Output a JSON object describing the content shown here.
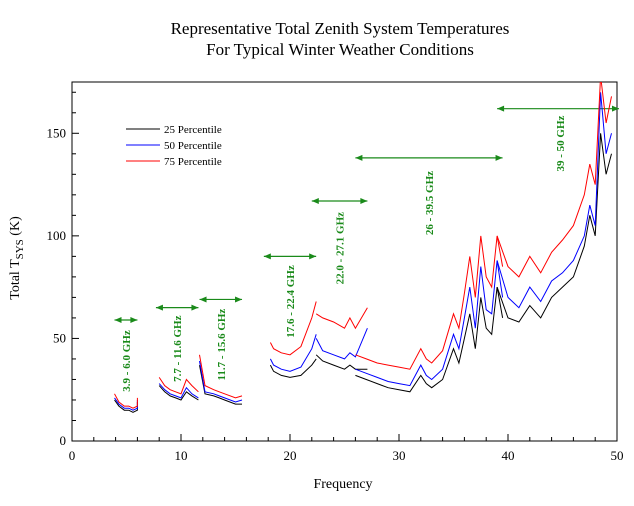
{
  "chart_data": {
    "type": "line",
    "title_lines": [
      "Representative Total Zenith System Temperatures",
      "For Typical Winter Weather Conditions"
    ],
    "xlabel": "Frequency",
    "ylabel_main": "Total T",
    "ylabel_sub": "SYS",
    "ylabel_unit": " (K)",
    "xlim": [
      0,
      50
    ],
    "ylim": [
      0,
      175
    ],
    "xticks": [
      0,
      10,
      20,
      30,
      40,
      50
    ],
    "yticks": [
      0,
      50,
      100,
      150
    ],
    "legend_position": "upper-left",
    "series": [
      {
        "name": "25 Percentile",
        "color": "#000000",
        "segments": [
          [
            [
              3.9,
              20
            ],
            [
              4.3,
              17
            ],
            [
              4.8,
              15
            ],
            [
              5.2,
              15
            ],
            [
              5.6,
              14
            ],
            [
              6.0,
              15
            ],
            [
              6.0,
              19
            ]
          ],
          [
            [
              8.0,
              27
            ],
            [
              8.5,
              24
            ],
            [
              9.0,
              22
            ],
            [
              9.5,
              21
            ],
            [
              10.0,
              20
            ],
            [
              10.5,
              24
            ],
            [
              11.0,
              22
            ],
            [
              11.6,
              20
            ]
          ],
          [
            [
              11.7,
              37
            ],
            [
              12.2,
              23
            ],
            [
              13.0,
              22
            ],
            [
              13.5,
              21
            ],
            [
              14.0,
              20
            ],
            [
              15.0,
              18
            ],
            [
              15.6,
              18
            ]
          ],
          [
            [
              18.2,
              37
            ],
            [
              18.5,
              34
            ],
            [
              19.2,
              32
            ],
            [
              20.0,
              31
            ],
            [
              21.0,
              32
            ],
            [
              22.0,
              37
            ],
            [
              22.4,
              40
            ]
          ],
          [
            [
              22.4,
              42
            ],
            [
              23.0,
              39
            ],
            [
              24.0,
              37
            ],
            [
              25.0,
              35
            ],
            [
              25.5,
              37
            ],
            [
              26.0,
              35
            ],
            [
              27.1,
              35
            ]
          ],
          [
            [
              26.0,
              32
            ],
            [
              27.0,
              30
            ],
            [
              28.0,
              28
            ],
            [
              29.0,
              26
            ],
            [
              30.0,
              25
            ],
            [
              31.0,
              24
            ],
            [
              32.0,
              32
            ],
            [
              32.5,
              28
            ],
            [
              33.0,
              26
            ],
            [
              34.0,
              30
            ],
            [
              35.0,
              45
            ],
            [
              35.5,
              38
            ],
            [
              36.0,
              50
            ],
            [
              36.5,
              62
            ],
            [
              37.0,
              45
            ],
            [
              37.5,
              70
            ],
            [
              38.0,
              55
            ],
            [
              38.5,
              52
            ],
            [
              39.0,
              75
            ],
            [
              39.5,
              60
            ]
          ],
          [
            [
              39.0,
              75
            ],
            [
              40.0,
              60
            ],
            [
              41.0,
              58
            ],
            [
              42.0,
              66
            ],
            [
              43.0,
              60
            ],
            [
              44.0,
              70
            ],
            [
              45.0,
              75
            ],
            [
              46.0,
              80
            ],
            [
              47.0,
              95
            ],
            [
              47.5,
              110
            ],
            [
              48.0,
              100
            ],
            [
              48.5,
              150
            ],
            [
              49.0,
              130
            ],
            [
              49.5,
              140
            ]
          ]
        ]
      },
      {
        "name": "50 Percentile",
        "color": "#0000ff",
        "segments": [
          [
            [
              3.9,
              21
            ],
            [
              4.3,
              18
            ],
            [
              4.8,
              16
            ],
            [
              5.2,
              16
            ],
            [
              5.6,
              15
            ],
            [
              6.0,
              16
            ],
            [
              6.0,
              20
            ]
          ],
          [
            [
              8.0,
              28
            ],
            [
              8.5,
              25
            ],
            [
              9.0,
              23
            ],
            [
              9.5,
              22
            ],
            [
              10.0,
              21
            ],
            [
              10.5,
              26
            ],
            [
              11.0,
              23
            ],
            [
              11.6,
              21
            ]
          ],
          [
            [
              11.7,
              39
            ],
            [
              12.2,
              24
            ],
            [
              13.0,
              23
            ],
            [
              13.5,
              22
            ],
            [
              14.0,
              21
            ],
            [
              15.0,
              19
            ],
            [
              15.6,
              20
            ]
          ],
          [
            [
              18.2,
              40
            ],
            [
              18.5,
              37
            ],
            [
              19.2,
              35
            ],
            [
              20.0,
              34
            ],
            [
              21.0,
              36
            ],
            [
              22.0,
              45
            ],
            [
              22.4,
              52
            ]
          ],
          [
            [
              22.4,
              50
            ],
            [
              23.0,
              44
            ],
            [
              24.0,
              42
            ],
            [
              25.0,
              40
            ],
            [
              25.5,
              43
            ],
            [
              26.0,
              41
            ],
            [
              27.1,
              55
            ]
          ],
          [
            [
              26.0,
              35
            ],
            [
              27.0,
              33
            ],
            [
              28.0,
              31
            ],
            [
              29.0,
              29
            ],
            [
              30.0,
              28
            ],
            [
              31.0,
              27
            ],
            [
              32.0,
              37
            ],
            [
              32.5,
              32
            ],
            [
              33.0,
              30
            ],
            [
              34.0,
              35
            ],
            [
              35.0,
              52
            ],
            [
              35.5,
              45
            ],
            [
              36.0,
              60
            ],
            [
              36.5,
              75
            ],
            [
              37.0,
              55
            ],
            [
              37.5,
              85
            ],
            [
              38.0,
              64
            ],
            [
              38.5,
              62
            ],
            [
              39.0,
              88
            ],
            [
              39.5,
              70
            ]
          ],
          [
            [
              39.0,
              88
            ],
            [
              40.0,
              70
            ],
            [
              41.0,
              65
            ],
            [
              42.0,
              75
            ],
            [
              43.0,
              68
            ],
            [
              44.0,
              78
            ],
            [
              45.0,
              82
            ],
            [
              46.0,
              88
            ],
            [
              47.0,
              100
            ],
            [
              47.5,
              115
            ],
            [
              48.0,
              105
            ],
            [
              48.5,
              170
            ],
            [
              49.0,
              140
            ],
            [
              49.5,
              150
            ]
          ]
        ]
      },
      {
        "name": "75 Percentile",
        "color": "#ff0000",
        "segments": [
          [
            [
              3.9,
              23
            ],
            [
              4.3,
              19
            ],
            [
              4.8,
              17
            ],
            [
              5.2,
              17
            ],
            [
              5.6,
              16
            ],
            [
              6.0,
              17
            ],
            [
              6.0,
              21
            ]
          ],
          [
            [
              8.0,
              31
            ],
            [
              8.5,
              27
            ],
            [
              9.0,
              25
            ],
            [
              9.5,
              24
            ],
            [
              10.0,
              23
            ],
            [
              10.5,
              30
            ],
            [
              11.0,
              27
            ],
            [
              11.6,
              24
            ]
          ],
          [
            [
              11.7,
              42
            ],
            [
              12.2,
              27
            ],
            [
              13.0,
              25
            ],
            [
              13.5,
              24
            ],
            [
              14.0,
              23
            ],
            [
              15.0,
              21
            ],
            [
              15.6,
              22
            ]
          ],
          [
            [
              18.2,
              48
            ],
            [
              18.5,
              45
            ],
            [
              19.2,
              43
            ],
            [
              20.0,
              42
            ],
            [
              21.0,
              46
            ],
            [
              22.0,
              60
            ],
            [
              22.4,
              68
            ]
          ],
          [
            [
              22.4,
              62
            ],
            [
              23.0,
              60
            ],
            [
              24.0,
              58
            ],
            [
              25.0,
              55
            ],
            [
              25.5,
              60
            ],
            [
              26.0,
              55
            ],
            [
              27.1,
              65
            ]
          ],
          [
            [
              26.0,
              42
            ],
            [
              27.0,
              40
            ],
            [
              28.0,
              38
            ],
            [
              29.0,
              37
            ],
            [
              30.0,
              36
            ],
            [
              31.0,
              35
            ],
            [
              32.0,
              45
            ],
            [
              32.5,
              40
            ],
            [
              33.0,
              38
            ],
            [
              34.0,
              44
            ],
            [
              35.0,
              62
            ],
            [
              35.5,
              55
            ],
            [
              36.0,
              72
            ],
            [
              36.5,
              90
            ],
            [
              37.0,
              70
            ],
            [
              37.5,
              100
            ],
            [
              38.0,
              80
            ],
            [
              38.5,
              75
            ],
            [
              39.0,
              100
            ],
            [
              39.5,
              85
            ]
          ],
          [
            [
              39.0,
              100
            ],
            [
              40.0,
              85
            ],
            [
              41.0,
              80
            ],
            [
              42.0,
              90
            ],
            [
              43.0,
              82
            ],
            [
              44.0,
              92
            ],
            [
              45.0,
              98
            ],
            [
              46.0,
              105
            ],
            [
              47.0,
              120
            ],
            [
              47.5,
              135
            ],
            [
              48.0,
              125
            ],
            [
              48.5,
              178
            ],
            [
              49.0,
              155
            ],
            [
              49.5,
              168
            ]
          ]
        ]
      }
    ],
    "bands": [
      {
        "label": "3.9 - 6.0 GHz",
        "x0": 3.9,
        "x1": 6.0,
        "y": 59,
        "label_y": 39
      },
      {
        "label": "7.7 - 11.6 GHz",
        "x0": 7.7,
        "x1": 11.6,
        "y": 65,
        "label_y": 45
      },
      {
        "label": "11.7 - 15.6 GHz",
        "x0": 11.7,
        "x1": 15.6,
        "y": 69,
        "label_y": 47
      },
      {
        "label": "17.6 - 22.4 GHz",
        "x0": 17.6,
        "x1": 22.4,
        "y": 90,
        "label_y": 68
      },
      {
        "label": "22.0 - 27.1 GHz",
        "x0": 22.0,
        "x1": 27.1,
        "y": 117,
        "label_y": 94
      },
      {
        "label": "26 - 39.5 GHz",
        "x0": 26.0,
        "x1": 39.5,
        "y": 138,
        "label_y": 116
      },
      {
        "label": "39 - 50 GHz",
        "x0": 39.0,
        "x1": 50.5,
        "y": 162,
        "label_y": 145
      }
    ],
    "band_color": "#1a8a1a",
    "grid": false
  }
}
